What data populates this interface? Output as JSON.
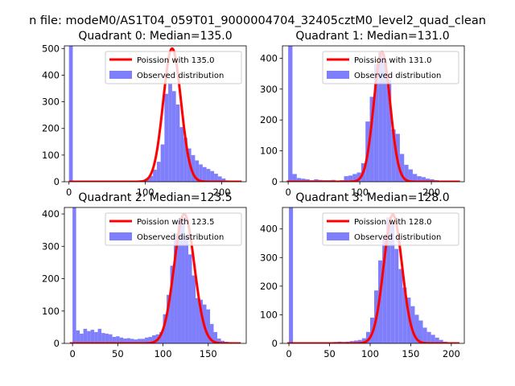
{
  "suptitle": "n file: modeM0/AS1T04_059T01_9000004704_32405cztM0_level2_quad_clean",
  "colors": {
    "hist": "#7f7ffb",
    "poisson": "#ff0000",
    "text": "#000000",
    "background": "#ffffff"
  },
  "chart_data": [
    {
      "type": "bar",
      "title": "Quadrant 0: Median=135.0",
      "median": 135.0,
      "xlim": [
        -6,
        232
      ],
      "ylim": [
        0,
        510
      ],
      "xticks": [
        0,
        100,
        200
      ],
      "yticks": [
        0,
        100,
        200,
        300,
        400,
        500
      ],
      "legend_position": "top-right",
      "legend": [
        "Poission with 135.0",
        "Observed distribution"
      ],
      "poisson_label": "Poission with 135.0",
      "observed_label": "Observed distribution",
      "bin_width": 5,
      "bins": [
        [
          0,
          510
        ],
        [
          95,
          5
        ],
        [
          100,
          12
        ],
        [
          105,
          22
        ],
        [
          110,
          45
        ],
        [
          115,
          75
        ],
        [
          120,
          140
        ],
        [
          125,
          330
        ],
        [
          130,
          370
        ],
        [
          135,
          340
        ],
        [
          140,
          290
        ],
        [
          145,
          205
        ],
        [
          150,
          165
        ],
        [
          155,
          125
        ],
        [
          160,
          100
        ],
        [
          165,
          80
        ],
        [
          170,
          65
        ],
        [
          175,
          55
        ],
        [
          180,
          48
        ],
        [
          185,
          40
        ],
        [
          190,
          30
        ],
        [
          195,
          20
        ],
        [
          200,
          12
        ],
        [
          205,
          5
        ]
      ],
      "poisson_curve": {
        "center": 135.0,
        "peak": 500
      }
    },
    {
      "type": "bar",
      "title": "Quadrant 1: Median=131.0",
      "median": 131.0,
      "xlim": [
        -8,
        246
      ],
      "ylim": [
        0,
        440
      ],
      "xticks": [
        0,
        100,
        200
      ],
      "yticks": [
        0,
        100,
        200,
        300,
        400
      ],
      "legend_position": "top-right",
      "legend": [
        "Poission with 131.0",
        "Observed distribution"
      ],
      "poisson_label": "Poission with 131.0",
      "observed_label": "Observed distribution",
      "bin_width": 6,
      "bins": [
        [
          0,
          440
        ],
        [
          6,
          25
        ],
        [
          12,
          12
        ],
        [
          18,
          10
        ],
        [
          24,
          8
        ],
        [
          30,
          5
        ],
        [
          36,
          8
        ],
        [
          42,
          6
        ],
        [
          48,
          5
        ],
        [
          54,
          5
        ],
        [
          60,
          6
        ],
        [
          66,
          4
        ],
        [
          72,
          5
        ],
        [
          78,
          18
        ],
        [
          84,
          20
        ],
        [
          90,
          25
        ],
        [
          96,
          30
        ],
        [
          102,
          60
        ],
        [
          108,
          195
        ],
        [
          114,
          275
        ],
        [
          120,
          380
        ],
        [
          126,
          420
        ],
        [
          132,
          390
        ],
        [
          138,
          330
        ],
        [
          144,
          170
        ],
        [
          150,
          155
        ],
        [
          156,
          90
        ],
        [
          162,
          55
        ],
        [
          168,
          40
        ],
        [
          174,
          25
        ],
        [
          180,
          18
        ],
        [
          186,
          15
        ],
        [
          192,
          10
        ],
        [
          198,
          8
        ],
        [
          204,
          5
        ]
      ],
      "poisson_curve": {
        "center": 131.0,
        "peak": 420
      }
    },
    {
      "type": "bar",
      "title": "Quadrant 2: Median=123.5",
      "median": 123.5,
      "xlim": [
        -9,
        192
      ],
      "ylim": [
        0,
        420
      ],
      "xticks": [
        0,
        50,
        100,
        150
      ],
      "yticks": [
        0,
        100,
        200,
        300,
        400
      ],
      "legend_position": "top-right",
      "legend": [
        "Poission with 123.5",
        "Observed distribution"
      ],
      "poisson_label": "Poission with 123.5",
      "observed_label": "Observed distribution",
      "bin_width": 4,
      "bins": [
        [
          0,
          420
        ],
        [
          4,
          40
        ],
        [
          8,
          30
        ],
        [
          12,
          45
        ],
        [
          16,
          38
        ],
        [
          20,
          42
        ],
        [
          24,
          35
        ],
        [
          28,
          45
        ],
        [
          32,
          32
        ],
        [
          36,
          30
        ],
        [
          40,
          28
        ],
        [
          44,
          20
        ],
        [
          48,
          22
        ],
        [
          52,
          18
        ],
        [
          56,
          15
        ],
        [
          60,
          16
        ],
        [
          64,
          14
        ],
        [
          68,
          12
        ],
        [
          72,
          14
        ],
        [
          76,
          14
        ],
        [
          80,
          18
        ],
        [
          84,
          20
        ],
        [
          88,
          25
        ],
        [
          92,
          28
        ],
        [
          96,
          35
        ],
        [
          100,
          90
        ],
        [
          104,
          150
        ],
        [
          108,
          240
        ],
        [
          112,
          340
        ],
        [
          116,
          380
        ],
        [
          120,
          390
        ],
        [
          124,
          330
        ],
        [
          128,
          275
        ],
        [
          132,
          210
        ],
        [
          136,
          140
        ],
        [
          140,
          135
        ],
        [
          144,
          120
        ],
        [
          148,
          105
        ],
        [
          152,
          60
        ],
        [
          156,
          35
        ],
        [
          160,
          15
        ],
        [
          164,
          8
        ],
        [
          168,
          5
        ],
        [
          172,
          4
        ]
      ],
      "poisson_curve": {
        "center": 123.5,
        "peak": 400
      }
    },
    {
      "type": "bar",
      "title": "Quadrant 3: Median=128.0",
      "median": 128.0,
      "xlim": [
        -8,
        216
      ],
      "ylim": [
        0,
        475
      ],
      "xticks": [
        0,
        50,
        100,
        150,
        200
      ],
      "yticks": [
        0,
        100,
        200,
        300,
        400
      ],
      "legend_position": "top-right",
      "legend": [
        "Poission with 128.0",
        "Observed distribution"
      ],
      "poisson_label": "Poission with 128.0",
      "observed_label": "Observed distribution",
      "bin_width": 5,
      "bins": [
        [
          0,
          475
        ],
        [
          45,
          3
        ],
        [
          50,
          4
        ],
        [
          55,
          5
        ],
        [
          60,
          6
        ],
        [
          65,
          5
        ],
        [
          70,
          6
        ],
        [
          75,
          8
        ],
        [
          80,
          10
        ],
        [
          85,
          12
        ],
        [
          90,
          18
        ],
        [
          95,
          40
        ],
        [
          100,
          90
        ],
        [
          105,
          185
        ],
        [
          110,
          290
        ],
        [
          115,
          365
        ],
        [
          120,
          440
        ],
        [
          125,
          420
        ],
        [
          130,
          330
        ],
        [
          135,
          260
        ],
        [
          140,
          195
        ],
        [
          145,
          160
        ],
        [
          150,
          130
        ],
        [
          155,
          100
        ],
        [
          160,
          80
        ],
        [
          165,
          55
        ],
        [
          170,
          40
        ],
        [
          175,
          30
        ],
        [
          180,
          20
        ],
        [
          185,
          12
        ],
        [
          190,
          6
        ]
      ],
      "poisson_curve": {
        "center": 128.0,
        "peak": 450
      }
    }
  ]
}
